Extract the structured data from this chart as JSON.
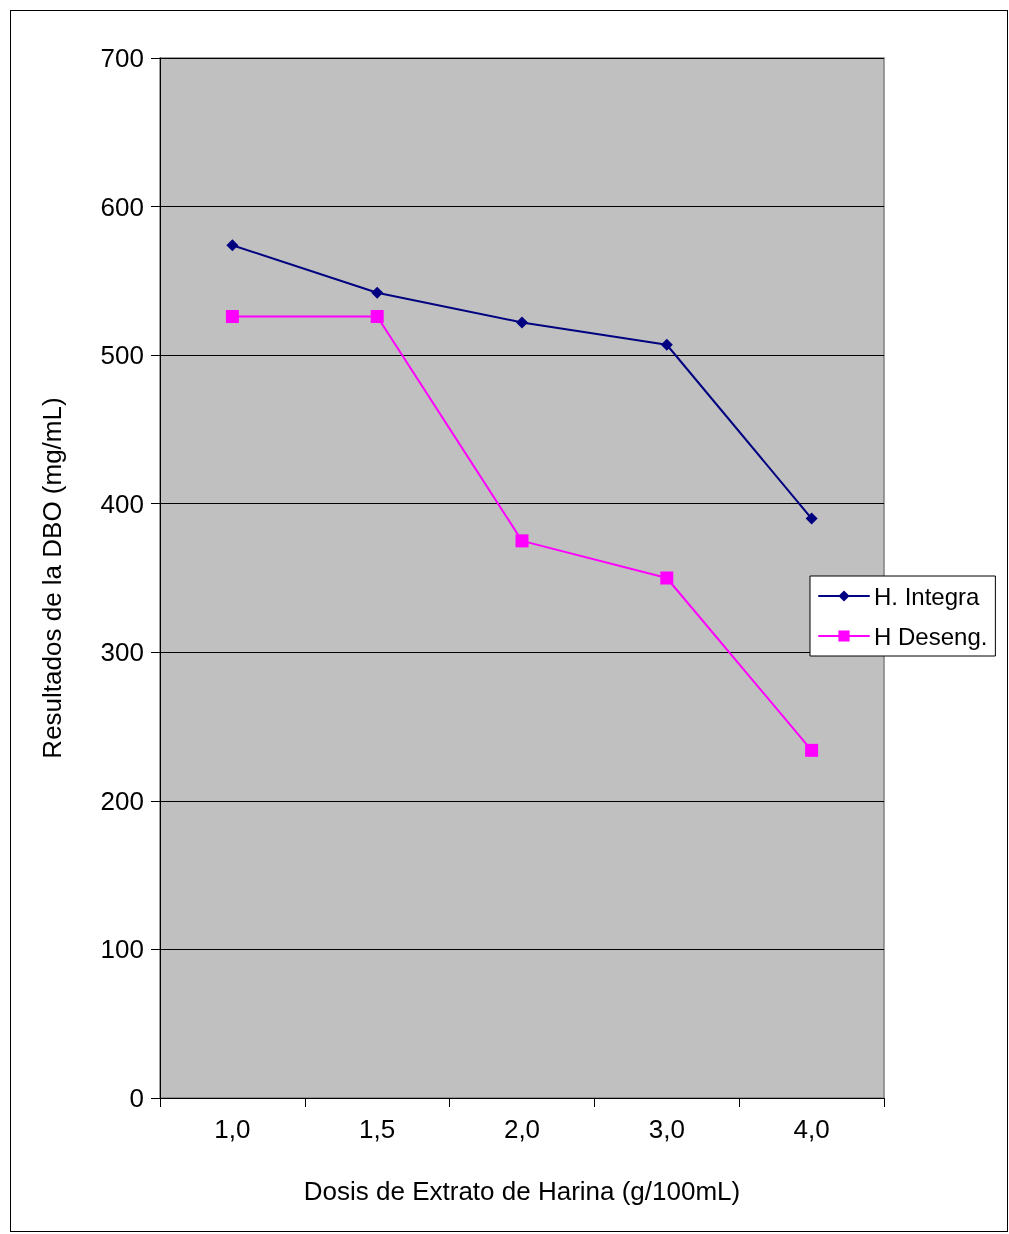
{
  "chart_data": {
    "type": "line",
    "xlabel": "Dosis de Extrato de Harina (g/100mL)",
    "ylabel": "Resultados de la DBO (mg/mL)",
    "categories": [
      "1,0",
      "1,5",
      "2,0",
      "3,0",
      "4,0"
    ],
    "series": [
      {
        "name": "H. Integra",
        "color": "#000080",
        "marker": "diamond",
        "values": [
          574,
          542,
          522,
          507,
          390
        ]
      },
      {
        "name": "H Deseng.",
        "color": "#ff00ff",
        "marker": "square",
        "values": [
          526,
          526,
          375,
          350,
          234
        ]
      }
    ],
    "ylim": [
      0,
      700
    ],
    "yticks": [
      0,
      100,
      200,
      300,
      400,
      500,
      600,
      700
    ],
    "grid": "y",
    "legend": "right",
    "line_style": "solid"
  }
}
